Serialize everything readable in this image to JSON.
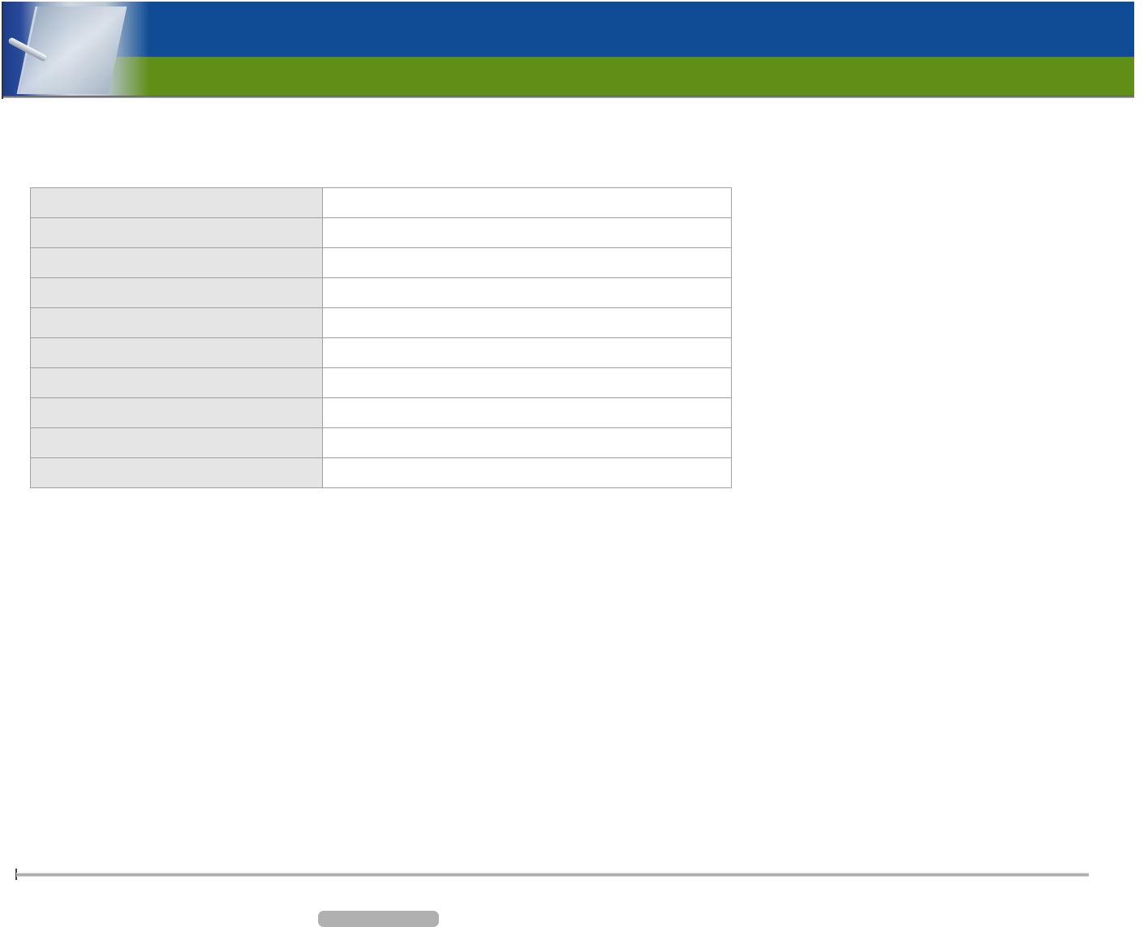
{
  "banner": {
    "colors": {
      "top": "#0f4c95",
      "bottom": "#5f8f17"
    },
    "icon": "tablet-pen-image"
  },
  "table": {
    "rows": [
      {
        "label": "",
        "value": ""
      },
      {
        "label": "",
        "value": ""
      },
      {
        "label": "",
        "value": ""
      },
      {
        "label": "",
        "value": ""
      },
      {
        "label": "",
        "value": ""
      },
      {
        "label": "",
        "value": ""
      },
      {
        "label": "",
        "value": ""
      },
      {
        "label": "",
        "value": ""
      },
      {
        "label": "",
        "value": ""
      },
      {
        "label": "",
        "value": ""
      }
    ]
  },
  "footer": {
    "button_label": ""
  }
}
